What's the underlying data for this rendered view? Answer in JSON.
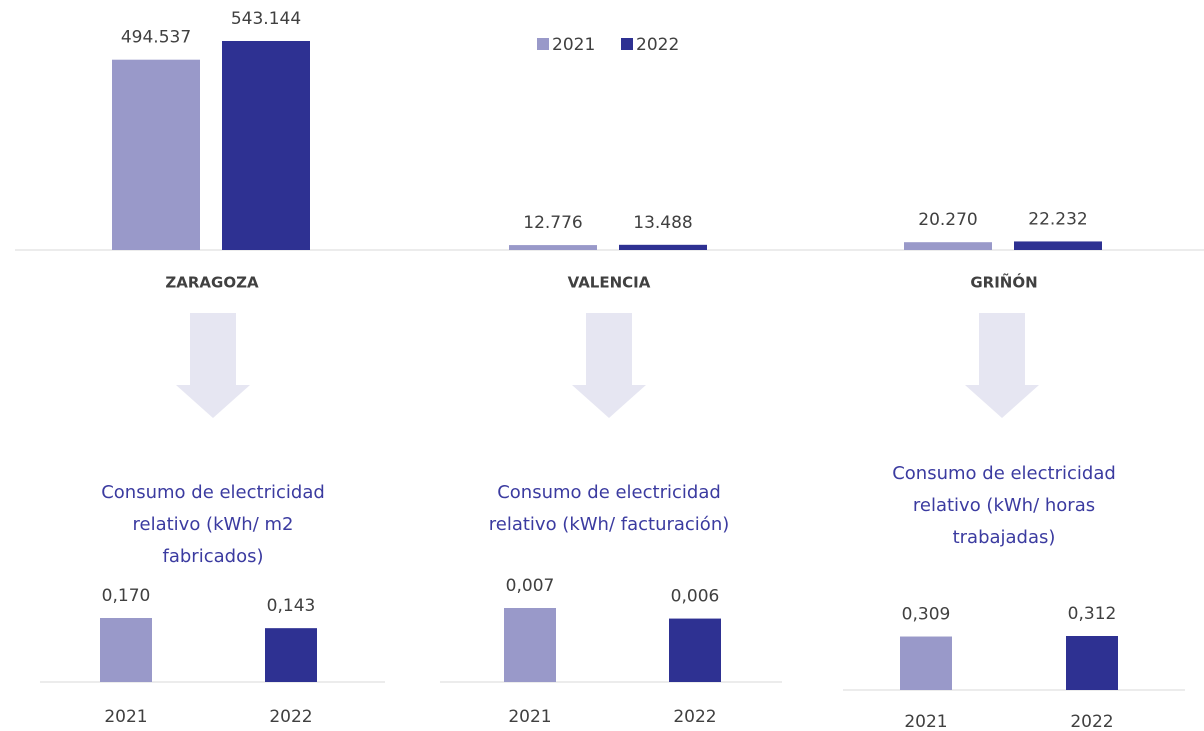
{
  "chart_data": [
    {
      "type": "bar",
      "categories": [
        "ZARAGOZA",
        "VALENCIA",
        "GRIÑÓN"
      ],
      "series": [
        {
          "name": "2021",
          "color": "#9999c9",
          "values": [
            494537,
            12776,
            20270
          ],
          "value_labels": [
            "494.537",
            "12.776",
            "20.270"
          ]
        },
        {
          "name": "2022",
          "color": "#2e3192",
          "values": [
            543144,
            13488,
            22232
          ],
          "value_labels": [
            "543.144",
            "13.488",
            "22.232"
          ]
        }
      ],
      "legend": "top"
    },
    {
      "type": "bar",
      "title": [
        "Consumo de electricidad",
        "relativo (kWh/ m2",
        "fabricados)"
      ],
      "categories": [
        "2021",
        "2022"
      ],
      "values": [
        0.17,
        0.143
      ],
      "value_labels": [
        "0,170",
        "0,143"
      ],
      "colors": [
        "#9999c9",
        "#2e3192"
      ]
    },
    {
      "type": "bar",
      "title": [
        "Consumo de electricidad",
        "relativo (kWh/ facturación)"
      ],
      "categories": [
        "2021",
        "2022"
      ],
      "values": [
        0.007,
        0.006
      ],
      "value_labels": [
        "0,007",
        "0,006"
      ],
      "colors": [
        "#9999c9",
        "#2e3192"
      ]
    },
    {
      "type": "bar",
      "title": [
        "Consumo de electricidad",
        "relativo (kWh/ horas",
        "trabajadas)"
      ],
      "categories": [
        "2021",
        "2022"
      ],
      "values": [
        0.309,
        0.312
      ],
      "value_labels": [
        "0,309",
        "0,312"
      ],
      "colors": [
        "#9999c9",
        "#2e3192"
      ]
    }
  ]
}
